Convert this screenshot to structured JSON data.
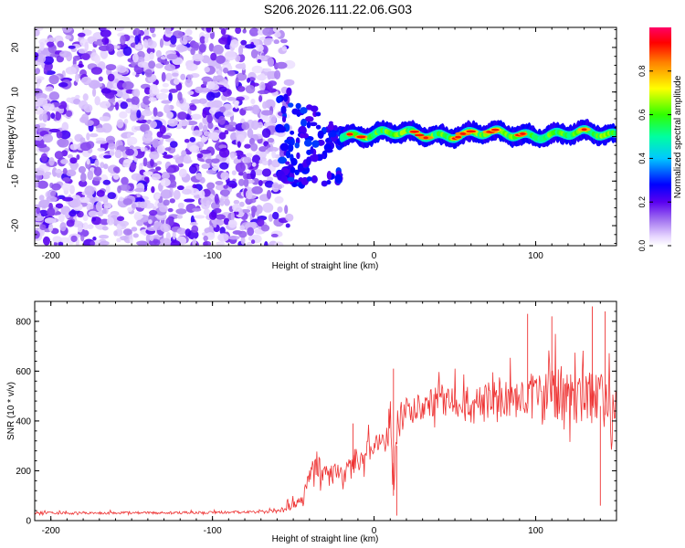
{
  "title": "S206.2026.111.22.06.G03",
  "chart_data": [
    {
      "type": "heatmap",
      "name": "spectrogram",
      "xlabel": "Height of straight line (km)",
      "ylabel": "Frequency (Hz)",
      "xlim": [
        -210,
        150
      ],
      "ylim": [
        -24.5,
        24.5
      ],
      "x_ticks": [
        "-200",
        "-100",
        "0",
        "100"
      ],
      "x_tick_values": [
        -200,
        -100,
        0,
        100
      ],
      "y_ticks": [
        "20",
        "10",
        "0",
        "-10",
        "-20"
      ],
      "y_tick_values": [
        20,
        10,
        0,
        -10,
        -20
      ],
      "colorbar": {
        "label": "Normalized spectral amplitude",
        "range": [
          0,
          1
        ],
        "ticks": [
          "0.0",
          "0.2",
          "0.4",
          "0.6",
          "0.8"
        ],
        "tick_values": [
          0,
          0.2,
          0.4,
          0.6,
          0.8
        ]
      },
      "features": {
        "noise_region_x": [
          -210,
          -60
        ],
        "transition_region_x": [
          -60,
          -20
        ],
        "carrier_line_x": [
          -20,
          150
        ],
        "carrier_frequency_hz": 0.5
      }
    },
    {
      "type": "line",
      "name": "snr",
      "xlabel": "Height of straight line (km)",
      "ylabel": "SNR (10 * v/v)",
      "xlim": [
        -210,
        150
      ],
      "ylim": [
        0,
        880
      ],
      "x_ticks": [
        "-200",
        "-100",
        "0",
        "100"
      ],
      "x_tick_values": [
        -200,
        -100,
        0,
        100
      ],
      "y_ticks": [
        "0",
        "200",
        "400",
        "600",
        "800"
      ],
      "y_tick_values": [
        0,
        200,
        400,
        600,
        800
      ],
      "color": "#ee3333",
      "series": [
        {
          "name": "SNR",
          "x": [
            -210,
            -180,
            -150,
            -120,
            -90,
            -60,
            -45,
            -40,
            -35,
            -30,
            -25,
            -20,
            -15,
            -10,
            -5,
            0,
            5,
            8,
            10,
            12,
            15,
            20,
            30,
            40,
            50,
            60,
            70,
            80,
            90,
            100,
            110,
            120,
            130,
            140,
            145,
            150
          ],
          "y": [
            30,
            28,
            30,
            30,
            32,
            35,
            60,
            150,
            200,
            160,
            180,
            170,
            190,
            230,
            260,
            280,
            300,
            330,
            380,
            100,
            400,
            420,
            440,
            460,
            450,
            440,
            450,
            460,
            470,
            470,
            480,
            470,
            460,
            460,
            400,
            380
          ],
          "amplitude": [
            10,
            10,
            10,
            10,
            10,
            12,
            60,
            120,
            110,
            90,
            90,
            90,
            100,
            110,
            120,
            110,
            110,
            140,
            180,
            120,
            120,
            110,
            120,
            130,
            140,
            150,
            160,
            170,
            180,
            200,
            220,
            230,
            230,
            230,
            220,
            220
          ]
        }
      ]
    }
  ]
}
